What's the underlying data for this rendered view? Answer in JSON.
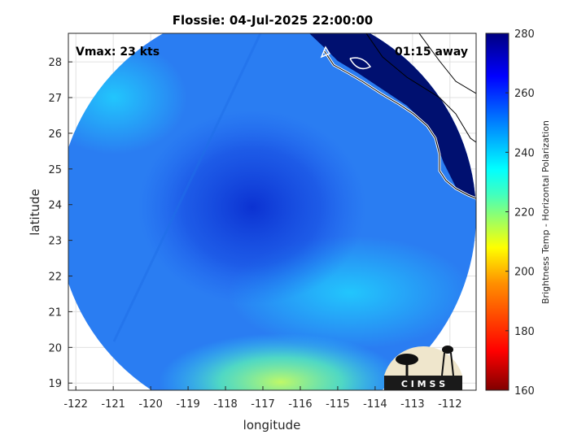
{
  "chart_data": {
    "type": "heatmap",
    "title": "Flossie: 04-Jul-2025 22:00:00",
    "xlabel": "longitude",
    "ylabel": "latitude",
    "xlim": [
      -122.2,
      -111.3
    ],
    "ylim": [
      18.8,
      28.8
    ],
    "x_ticks": [
      -122,
      -121,
      -120,
      -119,
      -118,
      -117,
      -116,
      -115,
      -114,
      -113,
      -112
    ],
    "y_ticks": [
      19,
      20,
      21,
      22,
      23,
      24,
      25,
      26,
      27,
      28
    ],
    "grid": true,
    "colorbar": {
      "label": "Brightness Temp - Horizontal Polarization",
      "range": [
        160,
        280
      ],
      "ticks": [
        160,
        180,
        200,
        220,
        240,
        260,
        280
      ],
      "colormap": [
        "#800000",
        "#ff0000",
        "#ff8000",
        "#ffff00",
        "#80ff80",
        "#00ffff",
        "#0080ff",
        "#0000ff",
        "#000080"
      ]
    },
    "field": {
      "center": [
        -116.9,
        23.7
      ],
      "radius_deg": 5.6,
      "cold_center": {
        "lon": -116.9,
        "lat": 24.0,
        "value": 258
      },
      "background_value": 244,
      "warm_region": {
        "lon": -116.5,
        "lat": 19.4,
        "value": 218
      },
      "land_value": 275
    },
    "annotations": {
      "vmax": "Vmax: 23 kts",
      "time_away": "01:15 away"
    }
  },
  "logo": {
    "text": "C I M S S"
  },
  "colors": {
    "axis": "#262626",
    "grid": "#e0e0e0",
    "coast": "#ffffff",
    "border": "#000000"
  }
}
